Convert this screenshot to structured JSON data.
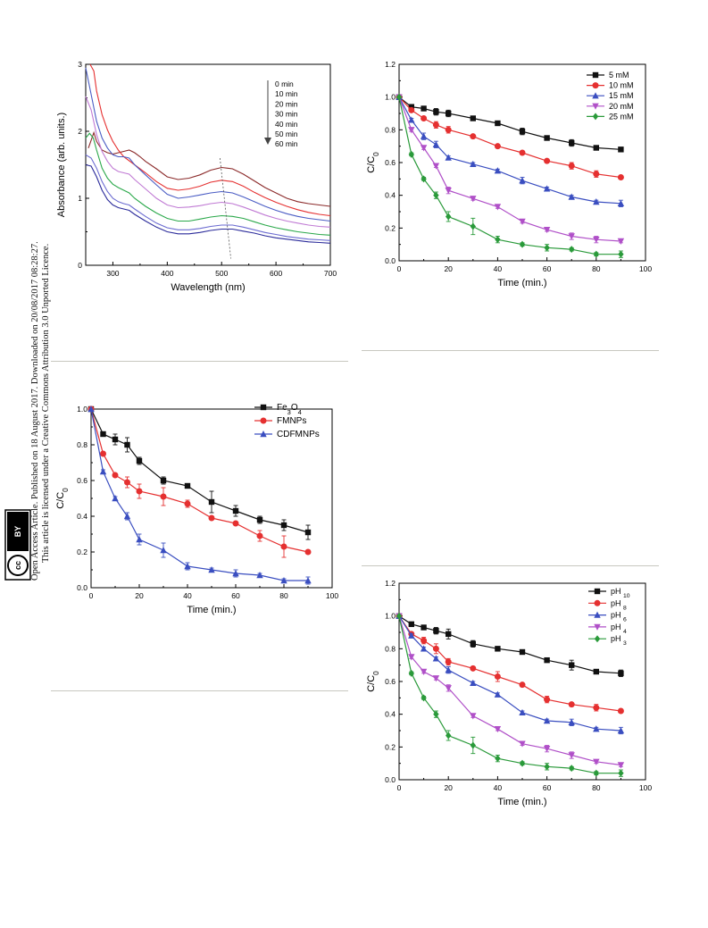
{
  "side_note": {
    "line1": "Open Access Article. Published on 18 August 2017. Downloaded on 20/08/2017 08:28:27.",
    "line2": "This article is licensed under a Creative Commons Attribution 3.0 Unported Licence."
  },
  "cc_badge": {
    "icon": "cc-by-license-icon",
    "cc_text": "cc",
    "by_text": "BY"
  },
  "chart_data": [
    {
      "type": "line",
      "title": "",
      "xlabel": "Wavelength (nm)",
      "ylabel": "Absorbance (arb. units.)",
      "xlim": [
        250,
        700
      ],
      "ylim": [
        0,
        3
      ],
      "xticks": [
        "300",
        "400",
        "500",
        "600",
        "700"
      ],
      "yticks": [
        "0",
        "1",
        "2",
        "3"
      ],
      "legend_position": "top-right",
      "legend_arrow": "down",
      "series": [
        {
          "name": "0 min",
          "color": "#8b2a2a",
          "x": [
            255,
            265,
            270,
            280,
            290,
            300,
            310,
            320,
            330,
            340,
            350,
            360,
            380,
            400,
            420,
            440,
            460,
            480,
            500,
            520,
            540,
            560,
            580,
            600,
            620,
            640,
            660,
            680,
            700
          ],
          "y": [
            1.75,
            1.98,
            1.85,
            1.72,
            1.68,
            1.66,
            1.68,
            1.7,
            1.72,
            1.68,
            1.62,
            1.55,
            1.44,
            1.32,
            1.28,
            1.3,
            1.35,
            1.42,
            1.46,
            1.44,
            1.36,
            1.26,
            1.16,
            1.08,
            1.0,
            0.95,
            0.92,
            0.9,
            0.88
          ]
        },
        {
          "name": "10 min",
          "color": "#e53030",
          "x": [
            258,
            265,
            270,
            280,
            290,
            300,
            310,
            320,
            340,
            360,
            380,
            400,
            420,
            440,
            460,
            480,
            500,
            520,
            540,
            560,
            580,
            600,
            620,
            640,
            660,
            680,
            700
          ],
          "y": [
            3.0,
            2.9,
            2.6,
            2.25,
            2.02,
            1.85,
            1.72,
            1.62,
            1.5,
            1.38,
            1.25,
            1.15,
            1.12,
            1.14,
            1.18,
            1.24,
            1.27,
            1.25,
            1.18,
            1.09,
            1.01,
            0.94,
            0.88,
            0.83,
            0.79,
            0.76,
            0.74
          ]
        },
        {
          "name": "20 min",
          "color": "#4a5cc4",
          "x": [
            250,
            260,
            270,
            280,
            290,
            300,
            310,
            320,
            330,
            340,
            360,
            380,
            400,
            420,
            440,
            460,
            480,
            500,
            520,
            540,
            560,
            580,
            600,
            620,
            640,
            660,
            680,
            700
          ],
          "y": [
            2.95,
            2.55,
            2.15,
            1.9,
            1.75,
            1.65,
            1.62,
            1.62,
            1.6,
            1.5,
            1.35,
            1.2,
            1.06,
            1.0,
            1.02,
            1.05,
            1.08,
            1.1,
            1.08,
            1.02,
            0.95,
            0.88,
            0.82,
            0.77,
            0.73,
            0.7,
            0.68,
            0.66
          ]
        },
        {
          "name": "30 min",
          "color": "#c07ad4",
          "x": [
            250,
            260,
            270,
            280,
            290,
            300,
            310,
            320,
            330,
            340,
            360,
            380,
            400,
            420,
            440,
            460,
            480,
            500,
            520,
            540,
            560,
            580,
            600,
            620,
            640,
            660,
            680,
            700
          ],
          "y": [
            2.52,
            2.32,
            1.95,
            1.7,
            1.55,
            1.45,
            1.4,
            1.38,
            1.36,
            1.28,
            1.14,
            1.0,
            0.9,
            0.86,
            0.87,
            0.89,
            0.92,
            0.94,
            0.92,
            0.87,
            0.81,
            0.75,
            0.7,
            0.66,
            0.63,
            0.6,
            0.58,
            0.57
          ]
        },
        {
          "name": "40 min",
          "color": "#2aa84a",
          "x": [
            250,
            257,
            264,
            270,
            280,
            290,
            300,
            310,
            320,
            330,
            340,
            360,
            380,
            400,
            420,
            440,
            460,
            480,
            500,
            520,
            540,
            560,
            580,
            600,
            620,
            640,
            660,
            680,
            700
          ],
          "y": [
            1.9,
            1.97,
            1.9,
            1.72,
            1.45,
            1.3,
            1.21,
            1.16,
            1.12,
            1.08,
            1.0,
            0.88,
            0.78,
            0.7,
            0.66,
            0.66,
            0.69,
            0.72,
            0.74,
            0.73,
            0.7,
            0.65,
            0.6,
            0.56,
            0.53,
            0.5,
            0.48,
            0.46,
            0.45
          ]
        },
        {
          "name": "50 min",
          "color": "#6a6ad0",
          "x": [
            250,
            260,
            270,
            280,
            290,
            300,
            310,
            320,
            330,
            340,
            360,
            380,
            400,
            420,
            440,
            460,
            480,
            500,
            520,
            540,
            560,
            580,
            600,
            620,
            640,
            660,
            680,
            700
          ],
          "y": [
            1.65,
            1.6,
            1.45,
            1.25,
            1.1,
            1.0,
            0.95,
            0.92,
            0.9,
            0.84,
            0.73,
            0.63,
            0.56,
            0.53,
            0.53,
            0.55,
            0.58,
            0.6,
            0.6,
            0.57,
            0.53,
            0.49,
            0.46,
            0.43,
            0.41,
            0.39,
            0.38,
            0.37
          ]
        },
        {
          "name": "60 min",
          "color": "#2a2a9a",
          "x": [
            250,
            260,
            270,
            280,
            290,
            300,
            310,
            320,
            330,
            340,
            360,
            380,
            400,
            420,
            440,
            460,
            480,
            500,
            520,
            540,
            560,
            580,
            600,
            620,
            640,
            660,
            680,
            700
          ],
          "y": [
            1.5,
            1.48,
            1.32,
            1.12,
            0.98,
            0.9,
            0.86,
            0.84,
            0.82,
            0.76,
            0.66,
            0.57,
            0.5,
            0.47,
            0.47,
            0.49,
            0.52,
            0.54,
            0.54,
            0.51,
            0.48,
            0.44,
            0.41,
            0.39,
            0.37,
            0.35,
            0.34,
            0.33
          ]
        }
      ]
    },
    {
      "type": "line",
      "title": "",
      "xlabel": "Time (min.)",
      "ylabel": "C/C0",
      "xlim": [
        0,
        100
      ],
      "ylim": [
        0,
        1.2
      ],
      "xticks": [
        "0",
        "20",
        "40",
        "60",
        "80",
        "100"
      ],
      "yticks": [
        "0.0",
        "0.2",
        "0.4",
        "0.6",
        "0.8",
        "1.0",
        "1.2"
      ],
      "legend_position": "top-right",
      "x": [
        0,
        5,
        10,
        15,
        20,
        30,
        40,
        50,
        60,
        70,
        80,
        90
      ],
      "series": [
        {
          "name": "5 mM",
          "color": "#111111",
          "marker": "square",
          "y": [
            1.0,
            0.94,
            0.93,
            0.91,
            0.9,
            0.87,
            0.84,
            0.79,
            0.75,
            0.72,
            0.69,
            0.68
          ],
          "err": [
            0,
            0.01,
            0.01,
            0.02,
            0.02,
            0.01,
            0.01,
            0.02,
            0.01,
            0.02,
            0.01,
            0.01
          ]
        },
        {
          "name": "10 mM",
          "color": "#e53030",
          "marker": "circle",
          "y": [
            1.0,
            0.92,
            0.87,
            0.83,
            0.8,
            0.76,
            0.7,
            0.66,
            0.61,
            0.58,
            0.53,
            0.51
          ],
          "err": [
            0,
            0.01,
            0.01,
            0.02,
            0.02,
            0.01,
            0.01,
            0.01,
            0.01,
            0.02,
            0.02,
            0.01
          ]
        },
        {
          "name": "15 mM",
          "color": "#3a4ec0",
          "marker": "triangle-up",
          "y": [
            1.0,
            0.86,
            0.76,
            0.71,
            0.63,
            0.59,
            0.55,
            0.49,
            0.44,
            0.39,
            0.36,
            0.35
          ],
          "err": [
            0,
            0.01,
            0.02,
            0.02,
            0.01,
            0.01,
            0.01,
            0.02,
            0.01,
            0.01,
            0.01,
            0.02
          ]
        },
        {
          "name": "20 mM",
          "color": "#b050c8",
          "marker": "triangle-down",
          "y": [
            1.0,
            0.8,
            0.69,
            0.58,
            0.43,
            0.38,
            0.33,
            0.24,
            0.19,
            0.15,
            0.13,
            0.12
          ],
          "err": [
            0,
            0.01,
            0.01,
            0.01,
            0.02,
            0.01,
            0.01,
            0.01,
            0.01,
            0.02,
            0.02,
            0.01
          ]
        },
        {
          "name": "25 mM",
          "color": "#2a9a3a",
          "marker": "diamond",
          "y": [
            1.0,
            0.65,
            0.5,
            0.4,
            0.27,
            0.21,
            0.13,
            0.1,
            0.08,
            0.07,
            0.04,
            0.04
          ],
          "err": [
            0,
            0.01,
            0.01,
            0.02,
            0.03,
            0.05,
            0.02,
            0.01,
            0.02,
            0.01,
            0.01,
            0.02
          ]
        }
      ]
    },
    {
      "type": "line",
      "title": "",
      "xlabel": "Time (min.)",
      "ylabel": "C/C0",
      "xlim": [
        0,
        100
      ],
      "ylim": [
        0,
        1.0
      ],
      "xticks": [
        "0",
        "20",
        "40",
        "60",
        "80",
        "100"
      ],
      "yticks": [
        "0.0",
        "0.2",
        "0.4",
        "0.6",
        "0.8",
        "1.0"
      ],
      "legend_position": "top-right",
      "x": [
        0,
        5,
        10,
        15,
        20,
        30,
        40,
        50,
        60,
        70,
        80,
        90
      ],
      "series": [
        {
          "name": "Fe3O4",
          "color": "#111111",
          "marker": "square",
          "y": [
            1.0,
            0.86,
            0.83,
            0.8,
            0.71,
            0.6,
            0.57,
            0.48,
            0.43,
            0.38,
            0.35,
            0.31
          ],
          "err": [
            0,
            0.01,
            0.03,
            0.04,
            0.02,
            0.02,
            0.01,
            0.06,
            0.03,
            0.02,
            0.03,
            0.04
          ]
        },
        {
          "name": "FMNPs",
          "color": "#e53030",
          "marker": "circle",
          "y": [
            1.0,
            0.75,
            0.63,
            0.59,
            0.54,
            0.51,
            0.47,
            0.39,
            0.36,
            0.29,
            0.23,
            0.2
          ],
          "err": [
            0,
            0.01,
            0.01,
            0.03,
            0.04,
            0.05,
            0.02,
            0.01,
            0.01,
            0.03,
            0.06,
            0.01
          ]
        },
        {
          "name": "CDFMNPs",
          "color": "#3a4ec0",
          "marker": "triangle-up",
          "y": [
            1.0,
            0.65,
            0.5,
            0.4,
            0.27,
            0.21,
            0.12,
            0.1,
            0.08,
            0.07,
            0.04,
            0.04
          ],
          "err": [
            0,
            0.01,
            0.01,
            0.02,
            0.03,
            0.04,
            0.02,
            0.01,
            0.02,
            0.01,
            0.01,
            0.02
          ]
        }
      ]
    },
    {
      "type": "line",
      "title": "",
      "xlabel": "Time (min.)",
      "ylabel": "C/C0",
      "xlim": [
        0,
        100
      ],
      "ylim": [
        0,
        1.2
      ],
      "xticks": [
        "0",
        "20",
        "40",
        "60",
        "80",
        "100"
      ],
      "yticks": [
        "0.0",
        "0.2",
        "0.4",
        "0.6",
        "0.8",
        "1.0",
        "1.2"
      ],
      "legend_position": "top-right",
      "x": [
        0,
        5,
        10,
        15,
        20,
        30,
        40,
        50,
        60,
        70,
        80,
        90
      ],
      "series": [
        {
          "name": "pH 10",
          "color": "#111111",
          "marker": "square",
          "y": [
            1.0,
            0.95,
            0.93,
            0.91,
            0.89,
            0.83,
            0.8,
            0.78,
            0.73,
            0.7,
            0.66,
            0.65
          ],
          "err": [
            0,
            0.01,
            0.01,
            0.02,
            0.03,
            0.02,
            0.01,
            0.01,
            0.01,
            0.03,
            0.01,
            0.02
          ]
        },
        {
          "name": "pH 8",
          "color": "#e53030",
          "marker": "circle",
          "y": [
            1.0,
            0.89,
            0.85,
            0.8,
            0.72,
            0.68,
            0.63,
            0.58,
            0.49,
            0.46,
            0.44,
            0.42
          ],
          "err": [
            0,
            0.01,
            0.02,
            0.03,
            0.02,
            0.01,
            0.03,
            0.01,
            0.02,
            0.01,
            0.02,
            0.01
          ]
        },
        {
          "name": "pH 6",
          "color": "#3a4ec0",
          "marker": "triangle-up",
          "y": [
            1.0,
            0.88,
            0.8,
            0.74,
            0.67,
            0.59,
            0.52,
            0.41,
            0.36,
            0.35,
            0.31,
            0.3
          ],
          "err": [
            0,
            0.01,
            0.01,
            0.01,
            0.02,
            0.01,
            0.01,
            0.01,
            0.01,
            0.02,
            0.01,
            0.02
          ]
        },
        {
          "name": "pH 4",
          "color": "#b050c8",
          "marker": "triangle-down",
          "y": [
            1.0,
            0.75,
            0.66,
            0.62,
            0.56,
            0.39,
            0.31,
            0.22,
            0.19,
            0.15,
            0.11,
            0.09
          ],
          "err": [
            0,
            0.01,
            0.01,
            0.01,
            0.02,
            0.01,
            0.01,
            0.01,
            0.02,
            0.02,
            0.01,
            0.01
          ]
        },
        {
          "name": "pH 3",
          "color": "#2a9a3a",
          "marker": "diamond",
          "y": [
            1.0,
            0.65,
            0.5,
            0.4,
            0.27,
            0.21,
            0.13,
            0.1,
            0.08,
            0.07,
            0.04,
            0.04
          ],
          "err": [
            0,
            0.01,
            0.01,
            0.02,
            0.03,
            0.05,
            0.02,
            0.01,
            0.02,
            0.01,
            0.01,
            0.02
          ]
        }
      ]
    }
  ]
}
